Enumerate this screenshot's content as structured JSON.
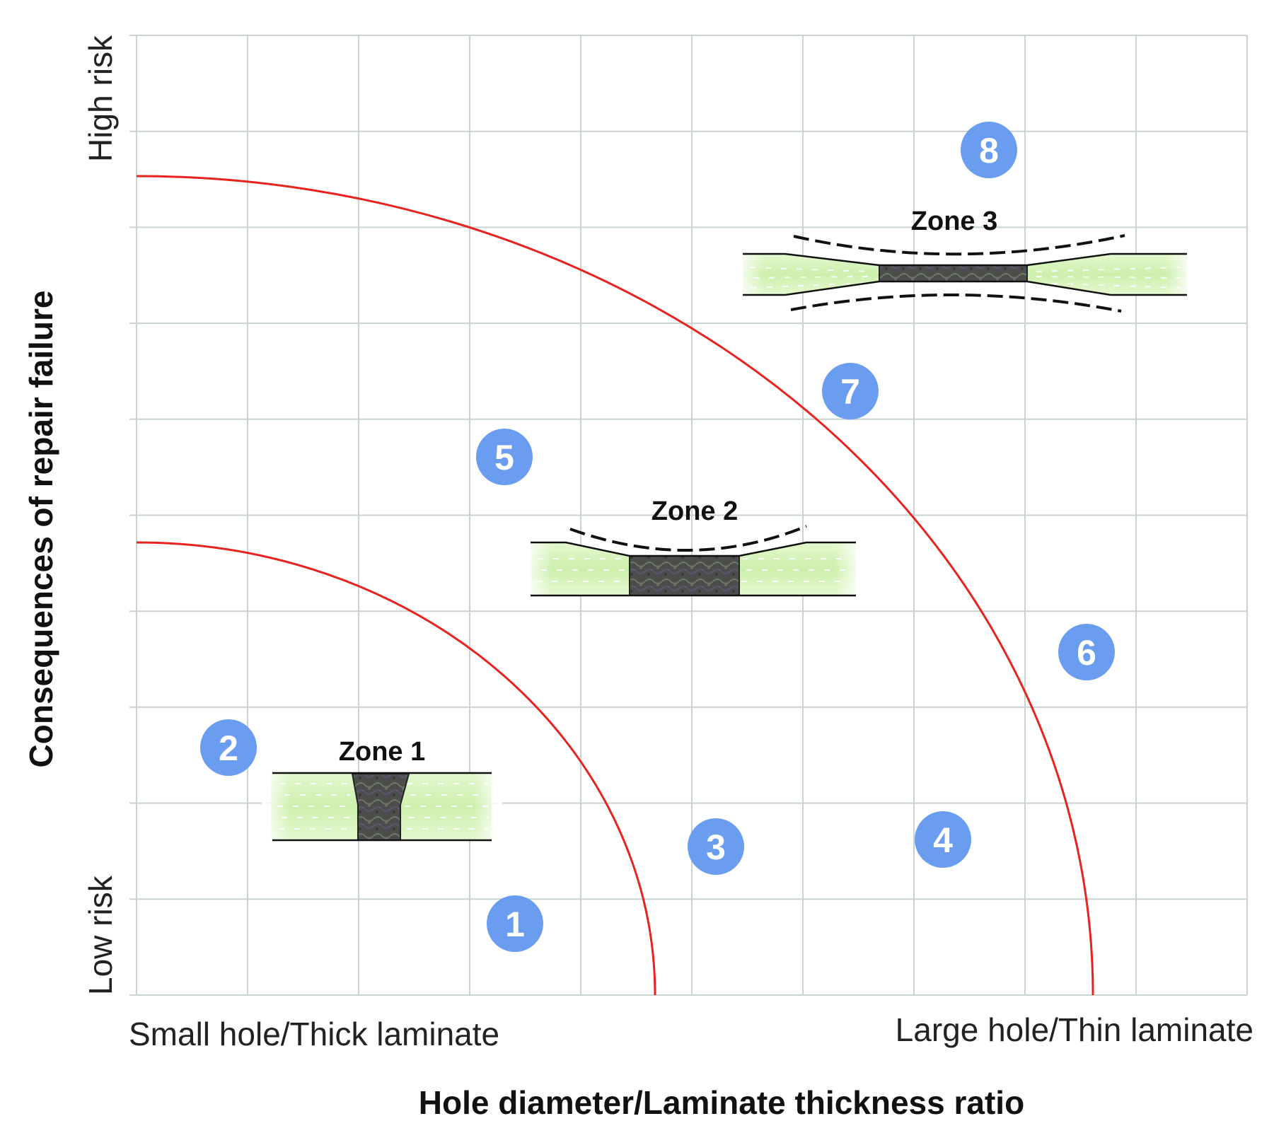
{
  "y_axis": {
    "title": "Consequences of repair failure",
    "top_label": "High risk",
    "bottom_label": "Low risk"
  },
  "x_axis": {
    "title": "Hole diameter/Laminate thickness ratio",
    "left_label": "Small hole/Thick laminate",
    "right_label": "Large hole/Thin laminate"
  },
  "zones": [
    {
      "label": "Zone 1"
    },
    {
      "label": "Zone 2"
    },
    {
      "label": "Zone 3"
    }
  ],
  "markers": [
    "1",
    "2",
    "3",
    "4",
    "5",
    "6",
    "7",
    "8"
  ],
  "colors": {
    "grid": "#c9d3cf",
    "boundary": "#e8231f",
    "marker": "#6a9df0",
    "laminate": "#d8f5bf",
    "patch": "#4a4a4a"
  }
}
